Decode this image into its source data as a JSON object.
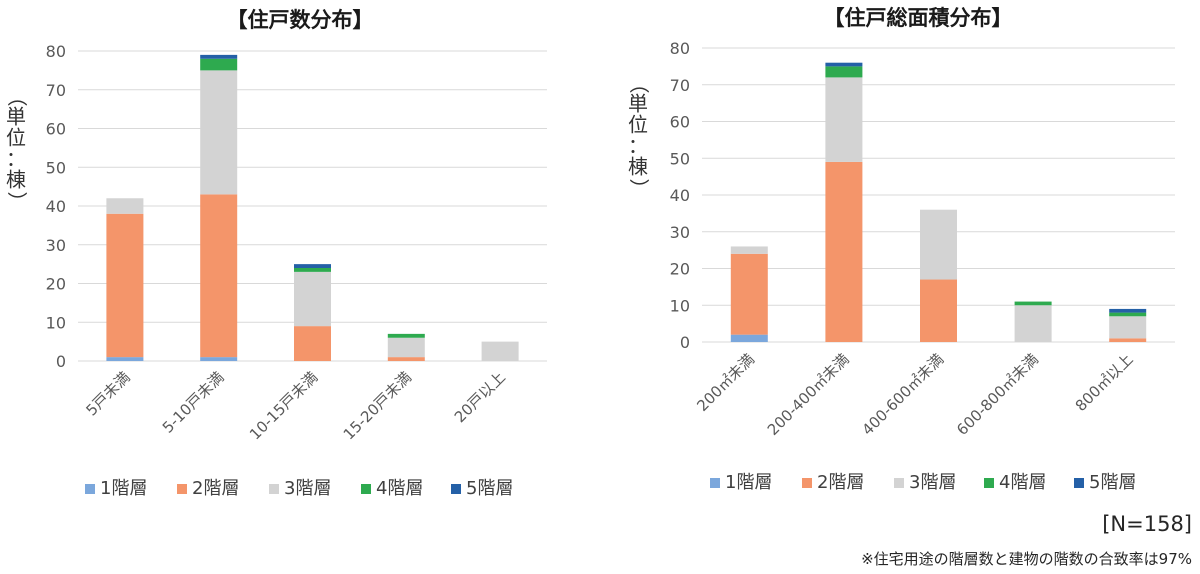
{
  "chart_data": [
    {
      "type": "bar",
      "stacked": true,
      "title": "【住戸数分布】",
      "ylabel": "（単位：棟）",
      "ylim": [
        0,
        80
      ],
      "yticks": [
        0,
        10,
        20,
        30,
        40,
        50,
        60,
        70,
        80
      ],
      "grid": true,
      "legend": "bottom",
      "categories": [
        "5戸未満",
        "5-10戸未満",
        "10-15戸未満",
        "15-20戸未満",
        "20戸以上"
      ],
      "series": [
        {
          "name": "1階層",
          "color": "#7ba7dc",
          "values": [
            1,
            1,
            0,
            0,
            0
          ]
        },
        {
          "name": "2階層",
          "color": "#f4956a",
          "values": [
            37,
            42,
            9,
            1,
            0
          ]
        },
        {
          "name": "3階層",
          "color": "#d3d3d3",
          "values": [
            4,
            32,
            14,
            5,
            5
          ]
        },
        {
          "name": "4階層",
          "color": "#2eaa4f",
          "values": [
            0,
            3,
            1,
            1,
            0
          ]
        },
        {
          "name": "5階層",
          "color": "#2460a7",
          "values": [
            0,
            1,
            1,
            0,
            0
          ]
        }
      ]
    },
    {
      "type": "bar",
      "stacked": true,
      "title": "【住戸総面積分布】",
      "ylabel": "（単位：棟）",
      "ylim": [
        0,
        80
      ],
      "yticks": [
        0,
        10,
        20,
        30,
        40,
        50,
        60,
        70,
        80
      ],
      "grid": true,
      "legend": "bottom",
      "categories": [
        "200㎡未満",
        "200-400㎡未満",
        "400-600㎡未満",
        "600-800㎡未満",
        "800㎡以上"
      ],
      "series": [
        {
          "name": "1階層",
          "color": "#7ba7dc",
          "values": [
            2,
            0,
            0,
            0,
            0
          ]
        },
        {
          "name": "2階層",
          "color": "#f4956a",
          "values": [
            22,
            49,
            17,
            0,
            1
          ]
        },
        {
          "name": "3階層",
          "color": "#d3d3d3",
          "values": [
            2,
            23,
            19,
            10,
            6
          ]
        },
        {
          "name": "4階層",
          "color": "#2eaa4f",
          "values": [
            0,
            3,
            0,
            1,
            1
          ]
        },
        {
          "name": "5階層",
          "color": "#2460a7",
          "values": [
            0,
            1,
            0,
            0,
            1
          ]
        }
      ]
    }
  ],
  "notes": {
    "n_label": "[N=158]",
    "footnote": "※住宅用途の階層数と建物の階数の合致率は97%"
  }
}
